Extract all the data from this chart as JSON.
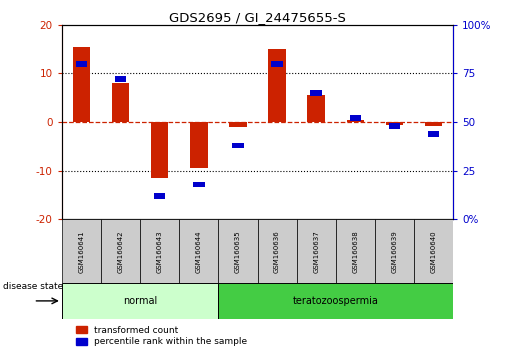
{
  "title": "GDS2695 / GI_24475655-S",
  "samples": [
    "GSM160641",
    "GSM160642",
    "GSM160643",
    "GSM160644",
    "GSM160635",
    "GSM160636",
    "GSM160637",
    "GSM160638",
    "GSM160639",
    "GSM160640"
  ],
  "groups": [
    "normal",
    "normal",
    "normal",
    "normal",
    "teratozoospermia",
    "teratozoospermia",
    "teratozoospermia",
    "teratozoospermia",
    "teratozoospermia",
    "teratozoospermia"
  ],
  "transformed_count": [
    15.5,
    8.0,
    -11.5,
    -9.5,
    -1.0,
    15.0,
    5.5,
    0.5,
    -0.5,
    -0.8
  ],
  "percentile_rank_raw": [
    80,
    72,
    12,
    18,
    38,
    80,
    65,
    52,
    48,
    44
  ],
  "ylim_left": [
    -20,
    20
  ],
  "ylim_right": [
    0,
    100
  ],
  "yticks_left": [
    -20,
    -10,
    0,
    10,
    20
  ],
  "yticks_right": [
    0,
    25,
    50,
    75,
    100
  ],
  "ytick_labels_right": [
    "0%",
    "25",
    "50",
    "75",
    "100%"
  ],
  "bar_color": "#cc2200",
  "dot_color": "#0000cc",
  "zero_line_color": "#cc2200",
  "grid_color": "#000000",
  "normal_color": "#ccffcc",
  "terato_color": "#44cc44",
  "sample_box_color": "#cccccc",
  "disease_state_label": "disease state",
  "legend_bar_label": "transformed count",
  "legend_dot_label": "percentile rank within the sample",
  "normal_label": "normal",
  "terato_label": "teratozoospermia"
}
